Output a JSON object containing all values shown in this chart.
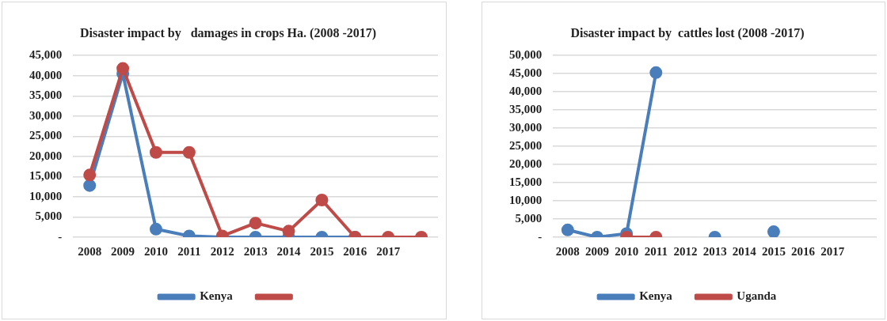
{
  "chart_data": [
    {
      "type": "line",
      "title": "Disaster impact by   damages in crops Ha. (2008 -2017)",
      "categories": [
        "2008",
        "2009",
        "2010",
        "2011",
        "2012",
        "2013",
        "2014",
        "2015",
        "2016",
        "2017",
        null
      ],
      "series": [
        {
          "name": "Kenya",
          "color": "#4a7ebb",
          "values": [
            12800,
            40500,
            2000,
            300,
            0,
            0,
            0,
            0,
            0,
            null,
            null
          ]
        },
        {
          "color": "#be4b48",
          "values": [
            15400,
            41800,
            21000,
            21000,
            300,
            3500,
            1500,
            9200,
            0,
            0,
            0
          ]
        }
      ],
      "ylim": [
        0,
        45000
      ],
      "yticks": [
        {
          "value": 0,
          "label": "-"
        },
        {
          "value": 5000,
          "label": "5,000"
        },
        {
          "value": 10000,
          "label": "10,000"
        },
        {
          "value": 15000,
          "label": "15,000"
        },
        {
          "value": 20000,
          "label": "20,000"
        },
        {
          "value": 25000,
          "label": "25,000"
        },
        {
          "value": 30000,
          "label": "30,000"
        },
        {
          "value": 35000,
          "label": "35,000"
        },
        {
          "value": 40000,
          "label": "40,000"
        },
        {
          "value": 45000,
          "label": "45,000"
        }
      ],
      "grid": "y",
      "legend": "bottom",
      "marker": "circle",
      "line_style": "solid"
    },
    {
      "type": "line",
      "title": "Disaster impact by  cattles lost (2008 -2017)",
      "categories": [
        "2008",
        "2009",
        "2010",
        "2011",
        "2012",
        "2013",
        "2014",
        "2015",
        "2016",
        "2017",
        null
      ],
      "series": [
        {
          "name": "Kenya",
          "color": "#4a7ebb",
          "values": [
            2000,
            0,
            1000,
            45300,
            null,
            0,
            null,
            1500,
            null,
            null,
            null
          ]
        },
        {
          "name": "Uganda",
          "color": "#be4b48",
          "values": [
            null,
            null,
            0,
            0,
            null,
            null,
            null,
            null,
            null,
            null,
            null
          ]
        }
      ],
      "ylim": [
        0,
        50000
      ],
      "yticks": [
        {
          "value": 0,
          "label": "-"
        },
        {
          "value": 5000,
          "label": "5,000"
        },
        {
          "value": 10000,
          "label": "10,000"
        },
        {
          "value": 15000,
          "label": "15,000"
        },
        {
          "value": 20000,
          "label": "20,000"
        },
        {
          "value": 25000,
          "label": "25,000"
        },
        {
          "value": 30000,
          "label": "30,000"
        },
        {
          "value": 35000,
          "label": "35,000"
        },
        {
          "value": 40000,
          "label": "40,000"
        },
        {
          "value": 45000,
          "label": "45,000"
        },
        {
          "value": 50000,
          "label": "50,000"
        }
      ],
      "grid": "y",
      "legend": "bottom",
      "marker": "circle",
      "line_style": "solid"
    }
  ]
}
